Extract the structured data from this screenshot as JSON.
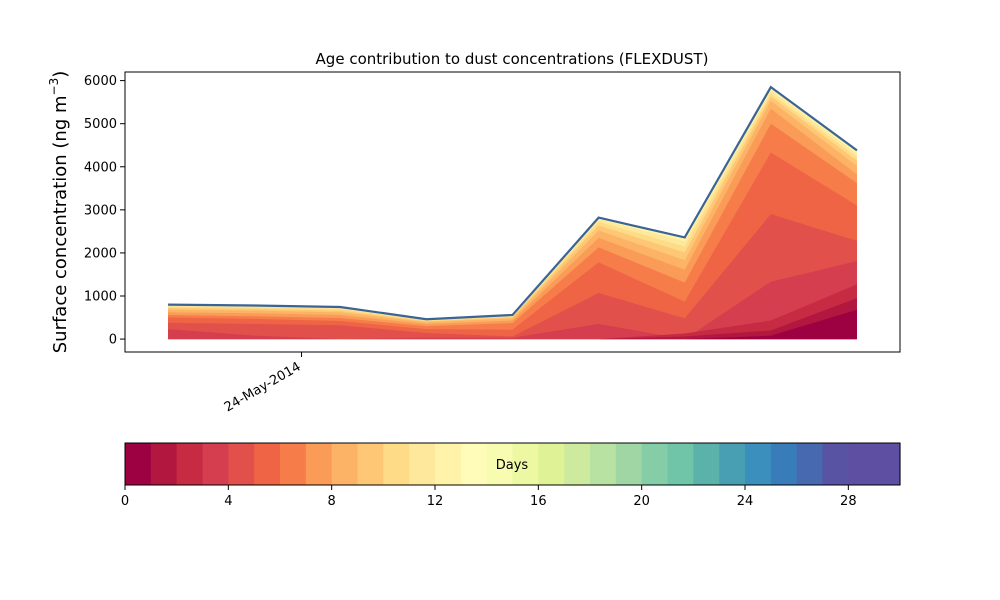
{
  "chart_data": {
    "type": "area",
    "title": "Age contribution to dust concentrations (FLEXDUST)",
    "ylabel_main": "Surface concentration (ng m",
    "ylabel_exp": "−3",
    "ylabel_close": ")",
    "xlabel": "",
    "ylim": [
      -300,
      6200
    ],
    "yticks": [
      0,
      1000,
      2000,
      3000,
      4000,
      5000,
      6000
    ],
    "x_index": [
      0,
      1,
      2,
      3,
      4,
      5,
      6,
      7,
      8
    ],
    "xlim": [
      -0.5,
      8.5
    ],
    "xticks": [
      {
        "pos": 1.55,
        "label": "24-May-2014"
      }
    ],
    "grid": false,
    "cumulative_layers": [
      [
        0,
        0,
        0,
        0,
        0,
        0,
        0,
        80,
        680
      ],
      [
        0,
        0,
        0,
        0,
        0,
        0,
        60,
        200,
        950
      ],
      [
        0,
        0,
        0,
        0,
        0,
        0,
        130,
        430,
        1270
      ],
      [
        230,
        80,
        0,
        30,
        30,
        350,
        0,
        1330,
        1810
      ],
      [
        380,
        350,
        320,
        140,
        60,
        1070,
        480,
        2900,
        2280
      ],
      [
        500,
        470,
        420,
        230,
        220,
        1780,
        870,
        4330,
        3100
      ],
      [
        560,
        530,
        490,
        300,
        370,
        2130,
        1310,
        5000,
        3620
      ],
      [
        620,
        600,
        560,
        350,
        430,
        2350,
        1610,
        5350,
        3820
      ],
      [
        680,
        660,
        620,
        390,
        480,
        2520,
        1830,
        5530,
        4020
      ],
      [
        720,
        700,
        660,
        410,
        510,
        2640,
        2010,
        5630,
        4140
      ],
      [
        755,
        735,
        700,
        430,
        530,
        2720,
        2150,
        5700,
        4220
      ],
      [
        780,
        760,
        725,
        445,
        545,
        2780,
        2270,
        5780,
        4300
      ],
      [
        800,
        780,
        745,
        460,
        560,
        2820,
        2360,
        5850,
        4380
      ]
    ],
    "layer_colors": [
      "#9e0142",
      "#b2183f",
      "#c72a43",
      "#d53e4f",
      "#e1504a",
      "#ee6445",
      "#f67d4a",
      "#fa9b58",
      "#fdb365",
      "#fdc775",
      "#fedb87",
      "#fee89b",
      "#fff3aa"
    ],
    "total_line_color": "#3b6496",
    "colorbar": {
      "label": "Days",
      "range": [
        0,
        30
      ],
      "ticks": [
        0,
        4,
        8,
        12,
        16,
        20,
        24,
        28
      ],
      "colors": [
        "#9e0142",
        "#b2183f",
        "#c72a43",
        "#d53e4f",
        "#e1504a",
        "#ee6445",
        "#f67d4a",
        "#fa9b58",
        "#fdb365",
        "#fdc775",
        "#fedb87",
        "#fee89b",
        "#fff3aa",
        "#fffbb8",
        "#f7fcb1",
        "#edf8a3",
        "#dff296",
        "#cdea9f",
        "#b7e2a1",
        "#9fd6a4",
        "#84cda7",
        "#70c4a7",
        "#5bb2aa",
        "#489fb3",
        "#3a8fbd",
        "#387cb9",
        "#4769b0",
        "#5853a2",
        "#5e4fa2",
        "#5e4fa2"
      ]
    }
  }
}
